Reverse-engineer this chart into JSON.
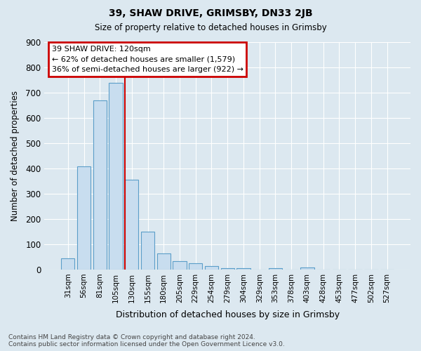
{
  "title1": "39, SHAW DRIVE, GRIMSBY, DN33 2JB",
  "title2": "Size of property relative to detached houses in Grimsby",
  "xlabel": "Distribution of detached houses by size in Grimsby",
  "ylabel": "Number of detached properties",
  "categories": [
    "31sqm",
    "56sqm",
    "81sqm",
    "105sqm",
    "130sqm",
    "155sqm",
    "180sqm",
    "205sqm",
    "229sqm",
    "254sqm",
    "279sqm",
    "304sqm",
    "329sqm",
    "353sqm",
    "378sqm",
    "403sqm",
    "428sqm",
    "453sqm",
    "477sqm",
    "502sqm",
    "527sqm"
  ],
  "values": [
    45,
    408,
    670,
    740,
    355,
    150,
    65,
    32,
    24,
    13,
    6,
    5,
    0,
    5,
    0,
    8,
    0,
    0,
    0,
    0,
    0
  ],
  "bar_color": "#c8ddef",
  "bar_edge_color": "#5b9ec9",
  "highlight_index": 4,
  "annotation_box_text": "39 SHAW DRIVE: 120sqm\n← 62% of detached houses are smaller (1,579)\n36% of semi-detached houses are larger (922) →",
  "annotation_color": "#cc0000",
  "background_color": "#dce8f0",
  "plot_bg_color": "#dce8f0",
  "grid_color": "#ffffff",
  "footer_text": "Contains HM Land Registry data © Crown copyright and database right 2024.\nContains public sector information licensed under the Open Government Licence v3.0.",
  "ylim": [
    0,
    900
  ],
  "yticks": [
    0,
    100,
    200,
    300,
    400,
    500,
    600,
    700,
    800,
    900
  ]
}
